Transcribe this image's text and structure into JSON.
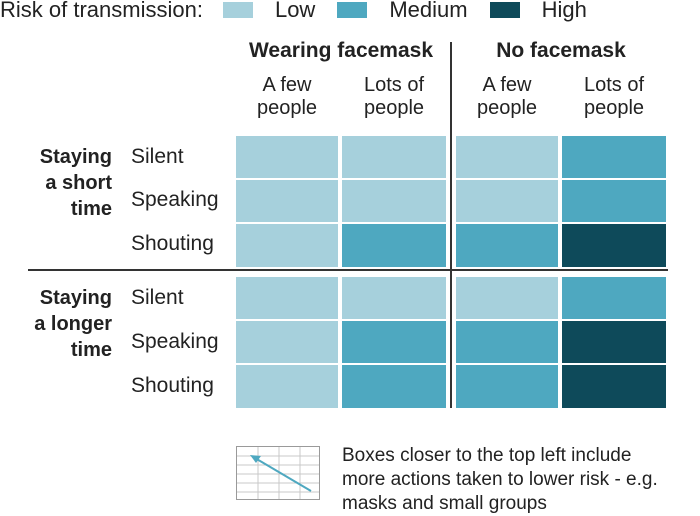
{
  "legend": {
    "title": "Risk of transmission:",
    "items": [
      {
        "key": "low",
        "label": "Low"
      },
      {
        "key": "medium",
        "label": "Medium"
      },
      {
        "key": "high",
        "label": "High"
      }
    ]
  },
  "colors": {
    "low": "#a6d0dc",
    "medium": "#4ea8c0",
    "high": "#0e4a5a"
  },
  "header": {
    "groups": [
      "Wearing facemask",
      "No facemask"
    ],
    "columns": [
      "A few\npeople",
      "Lots of\npeople",
      "A few\npeople",
      "Lots of\npeople"
    ]
  },
  "rows": {
    "groups": [
      "Staying\na short\ntime",
      "Staying\na longer\ntime"
    ],
    "actions": [
      "Silent",
      "Speaking",
      "Shouting"
    ]
  },
  "grid": [
    [
      "low",
      "low",
      "low",
      "medium"
    ],
    [
      "low",
      "low",
      "low",
      "medium"
    ],
    [
      "low",
      "medium",
      "medium",
      "high"
    ],
    [
      "low",
      "low",
      "low",
      "medium"
    ],
    [
      "low",
      "medium",
      "medium",
      "high"
    ],
    [
      "low",
      "medium",
      "medium",
      "high"
    ]
  ],
  "note": {
    "text": "Boxes closer to the top left include more actions taken to lower risk - e.g. masks and small groups"
  }
}
